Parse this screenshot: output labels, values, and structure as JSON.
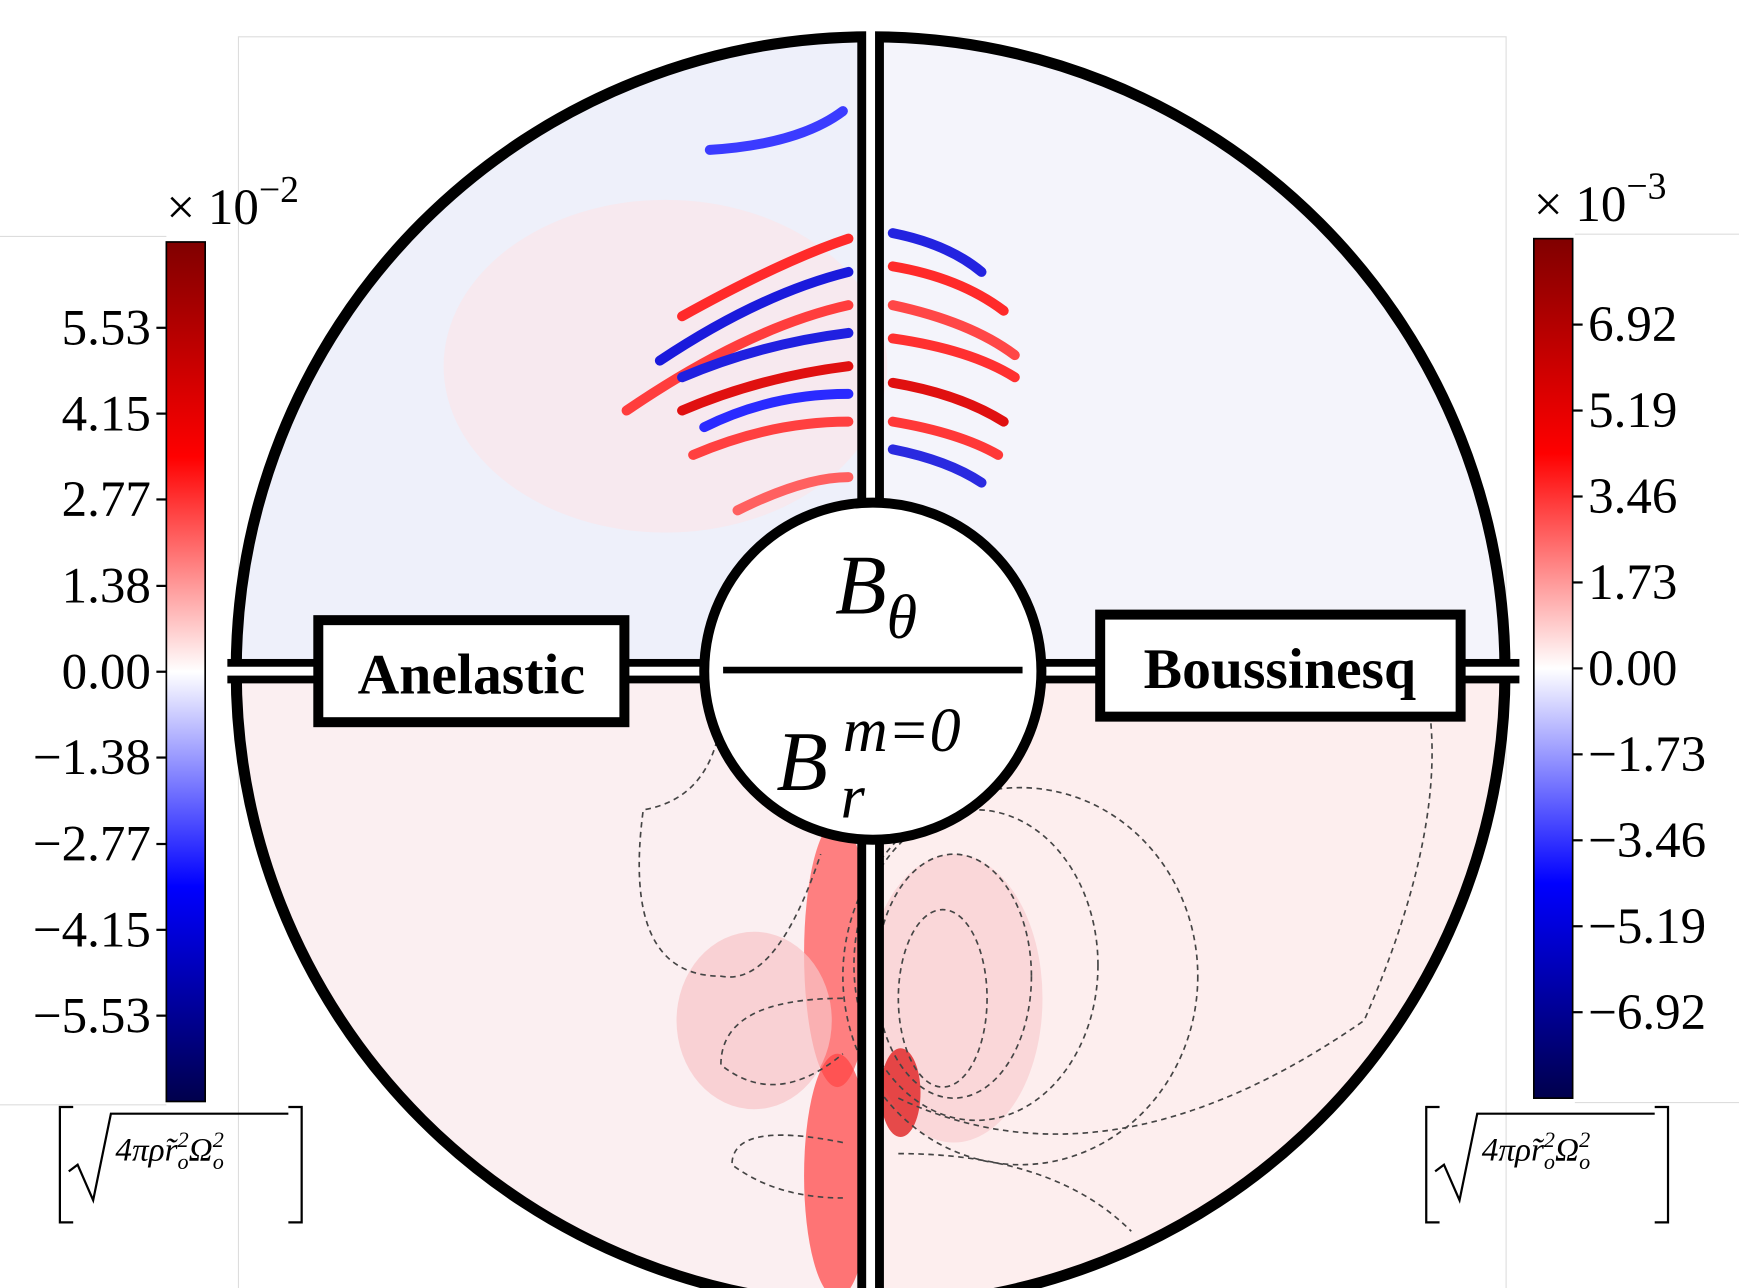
{
  "chart_data": [
    {
      "type": "colorbar",
      "label": "Anelastic",
      "side": "left",
      "multiplier": "× 10",
      "exponent": "−2",
      "units": {
        "prefix": "4πρ̃r",
        "sub1": "o",
        "sup1": "2",
        "mid": "Ω",
        "sub2": "o",
        "sup2": "2"
      },
      "colormap": [
        "#00004c",
        "#0000ff",
        "#ffffff",
        "#ff0000",
        "#800000"
      ],
      "ylim": [
        -6.91,
        6.91
      ],
      "yticks": [
        5.53,
        4.15,
        2.77,
        1.38,
        {
          "value": 0,
          "label": "0.00"
        },
        {
          "value": -1.38,
          "label": "−1.38"
        },
        {
          "value": -2.77,
          "label": "−2.77"
        },
        {
          "value": -4.15,
          "label": "−4.15"
        },
        {
          "value": -5.53,
          "label": "−5.53"
        }
      ]
    },
    {
      "type": "colorbar",
      "label": "Boussinesq",
      "side": "right",
      "multiplier": "× 10",
      "exponent": "−3",
      "units": {
        "prefix": "4πρ̃r",
        "sub1": "o",
        "sup1": "2",
        "mid": "Ω",
        "sub2": "o",
        "sup2": "2"
      },
      "colormap": [
        "#00004c",
        "#0000ff",
        "#ffffff",
        "#ff0000",
        "#800000"
      ],
      "ylim": [
        -8.65,
        8.65
      ],
      "yticks": [
        6.92,
        5.19,
        3.46,
        1.73,
        {
          "value": 0,
          "label": "0.00"
        },
        {
          "value": -1.73,
          "label": "−1.73"
        },
        {
          "value": -3.46,
          "label": "−3.46"
        },
        {
          "value": -5.19,
          "label": "−5.19"
        },
        {
          "value": -6.92,
          "label": "−6.92"
        }
      ]
    }
  ],
  "center_label": {
    "top": {
      "base": "B",
      "sub": "θ"
    },
    "bottom": {
      "base": "B",
      "sub": "r",
      "sup": "m=0"
    }
  }
}
